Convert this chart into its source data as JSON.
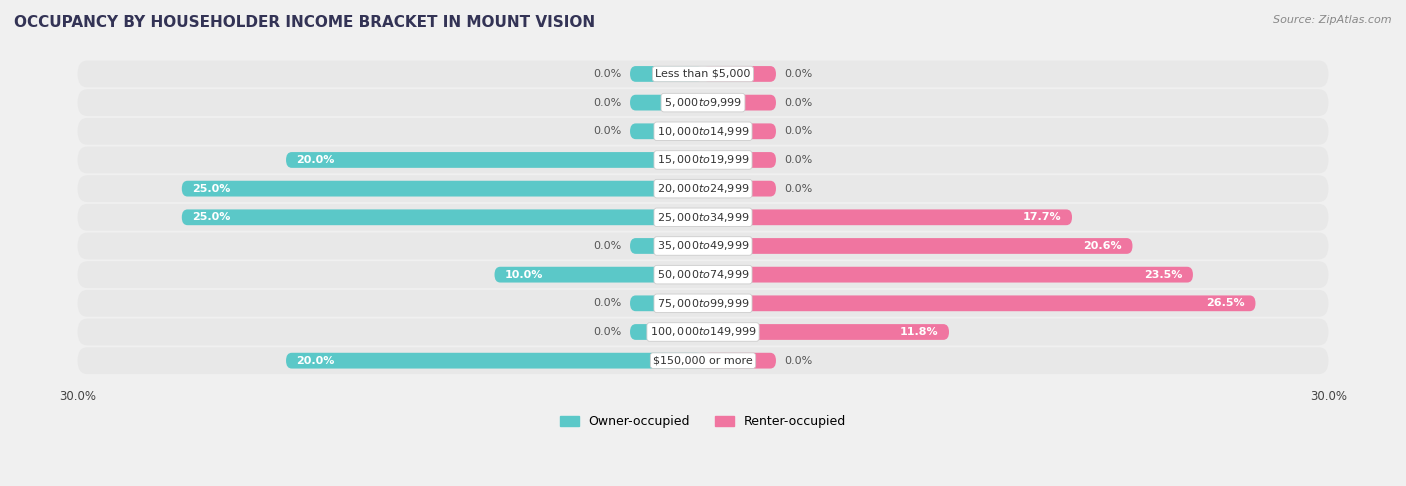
{
  "title": "OCCUPANCY BY HOUSEHOLDER INCOME BRACKET IN MOUNT VISION",
  "source": "Source: ZipAtlas.com",
  "categories": [
    "Less than $5,000",
    "$5,000 to $9,999",
    "$10,000 to $14,999",
    "$15,000 to $19,999",
    "$20,000 to $24,999",
    "$25,000 to $34,999",
    "$35,000 to $49,999",
    "$50,000 to $74,999",
    "$75,000 to $99,999",
    "$100,000 to $149,999",
    "$150,000 or more"
  ],
  "owner_values": [
    0.0,
    0.0,
    0.0,
    20.0,
    25.0,
    25.0,
    0.0,
    10.0,
    0.0,
    0.0,
    20.0
  ],
  "renter_values": [
    0.0,
    0.0,
    0.0,
    0.0,
    0.0,
    17.7,
    20.6,
    23.5,
    26.5,
    11.8,
    0.0
  ],
  "owner_color": "#5bc8c8",
  "renter_color": "#f075a0",
  "axis_limit": 30.0,
  "stub_size": 3.5,
  "background_color": "#f0f0f0",
  "row_bg_color": "#e8e8e8",
  "title_fontsize": 11,
  "source_fontsize": 8,
  "label_fontsize": 8,
  "category_fontsize": 8,
  "legend_fontsize": 9,
  "bar_height": 0.55
}
